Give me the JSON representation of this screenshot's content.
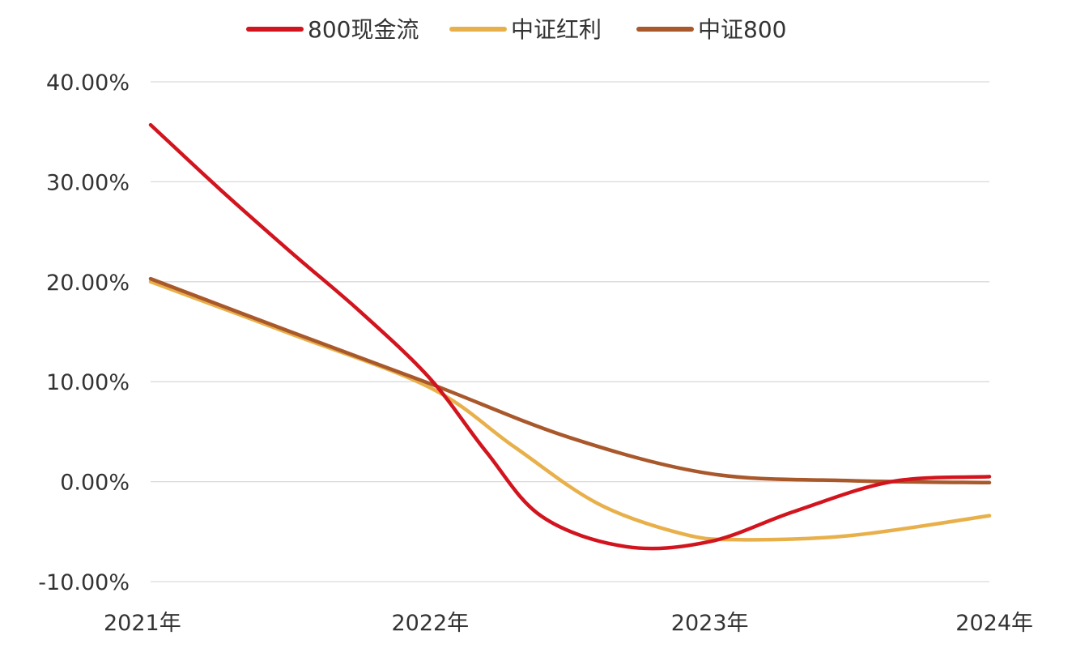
{
  "chart_data": {
    "type": "line",
    "x": [
      "2021年",
      "2022年",
      "2023年",
      "2024年"
    ],
    "ylim": [
      -10,
      40
    ],
    "y_ticks": [
      40,
      30,
      20,
      10,
      0,
      -10
    ],
    "y_tick_labels": [
      "40.00%",
      "30.00%",
      "20.00%",
      "10.00%",
      "0.00%",
      "-10.00%"
    ],
    "legend_position": "top-center",
    "grid": true,
    "series": [
      {
        "name": "800现金流",
        "color": "#d2141e",
        "points": [
          [
            0.0,
            35.7
          ],
          [
            0.25,
            29.2
          ],
          [
            0.5,
            23.0
          ],
          [
            0.75,
            17.0
          ],
          [
            1.0,
            10.3
          ],
          [
            1.2,
            3.0
          ],
          [
            1.4,
            -3.5
          ],
          [
            1.7,
            -6.5
          ],
          [
            2.0,
            -6.0
          ],
          [
            2.3,
            -3.0
          ],
          [
            2.65,
            0.0
          ],
          [
            3.0,
            0.5
          ]
        ]
      },
      {
        "name": "中证红利",
        "color": "#e8b04a",
        "points": [
          [
            0.0,
            20.0
          ],
          [
            0.5,
            14.8
          ],
          [
            1.0,
            9.4
          ],
          [
            1.3,
            3.5
          ],
          [
            1.6,
            -2.2
          ],
          [
            1.9,
            -5.2
          ],
          [
            2.1,
            -5.8
          ],
          [
            2.5,
            -5.4
          ],
          [
            3.0,
            -3.4
          ]
        ]
      },
      {
        "name": "中证800",
        "color": "#a9582b",
        "points": [
          [
            0.0,
            20.3
          ],
          [
            0.5,
            15.0
          ],
          [
            1.0,
            9.8
          ],
          [
            1.5,
            4.4
          ],
          [
            2.0,
            0.8
          ],
          [
            2.5,
            0.1
          ],
          [
            3.0,
            -0.1
          ]
        ]
      }
    ]
  }
}
